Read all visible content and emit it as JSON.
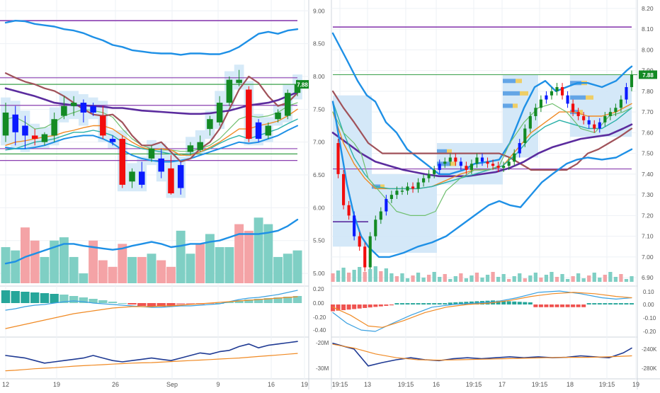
{
  "colors": {
    "up": "#138a24",
    "down": "#f20d0d",
    "strong_up": "#0a1aff",
    "band": "#1e90e6",
    "mid": "#5b2c9e",
    "line_brown": "#a0525a",
    "line_orange": "#f08a24",
    "line_teal": "#2ab0a8",
    "line_green": "#6fbf6f",
    "level_purple": "#8a3fb0",
    "level_green": "#3aa04a",
    "zone": "#cfe6f7",
    "vol_up": "#7fcfc4",
    "vol_down": "#f4a3a6",
    "macd_pos": "#26a69a",
    "macd_neg": "#ef5350",
    "macd_line": "#3aa0e0",
    "signal_line": "#f08a24",
    "obv_line": "#1f3a93",
    "obv_avg": "#f08a24",
    "grid": "#eef1f5",
    "axis_text": "#555555",
    "price_tag": "#138a24"
  },
  "chart_data": [
    {
      "type": "candlestick",
      "panel": "left",
      "x_tick_labels": [
        "12",
        "19",
        "26",
        "Sep",
        "9",
        "16",
        "19"
      ],
      "y_tick_labels": [
        "9.00",
        "8.50",
        "8.00",
        "7.50",
        "7.00",
        "6.50",
        "6.00",
        "5.50",
        "5.00"
      ],
      "ylim": [
        4.85,
        9.1
      ],
      "last_price_tag": "7.88",
      "candles": [
        {
          "o": 7.1,
          "h": 7.6,
          "l": 7.0,
          "c": 7.45,
          "t": "up"
        },
        {
          "o": 7.15,
          "h": 7.55,
          "l": 6.95,
          "c": 7.42,
          "t": "strong_up"
        },
        {
          "o": 7.25,
          "h": 7.4,
          "l": 6.9,
          "c": 7.1,
          "t": "strong_up"
        },
        {
          "o": 7.1,
          "h": 7.2,
          "l": 6.95,
          "c": 7.05,
          "t": "down"
        },
        {
          "o": 7.0,
          "h": 7.15,
          "l": 6.95,
          "c": 7.12,
          "t": "up"
        },
        {
          "o": 7.1,
          "h": 7.45,
          "l": 7.0,
          "c": 7.35,
          "t": "up"
        },
        {
          "o": 7.4,
          "h": 7.7,
          "l": 7.35,
          "c": 7.55,
          "t": "up"
        },
        {
          "o": 7.55,
          "h": 7.7,
          "l": 7.4,
          "c": 7.6,
          "t": "up"
        },
        {
          "o": 7.45,
          "h": 7.65,
          "l": 7.3,
          "c": 7.6,
          "t": "strong_up"
        },
        {
          "o": 7.55,
          "h": 7.6,
          "l": 7.4,
          "c": 7.45,
          "t": "strong_up"
        },
        {
          "o": 7.4,
          "h": 7.55,
          "l": 7.05,
          "c": 7.1,
          "t": "down"
        },
        {
          "o": 7.05,
          "h": 7.1,
          "l": 6.95,
          "c": 7.0,
          "t": "strong_up"
        },
        {
          "o": 7.05,
          "h": 7.1,
          "l": 6.3,
          "c": 6.35,
          "t": "down"
        },
        {
          "o": 6.4,
          "h": 6.6,
          "l": 6.3,
          "c": 6.55,
          "t": "up"
        },
        {
          "o": 6.55,
          "h": 6.7,
          "l": 6.3,
          "c": 6.35,
          "t": "strong_up"
        },
        {
          "o": 6.75,
          "h": 6.95,
          "l": 6.7,
          "c": 6.9,
          "t": "up"
        },
        {
          "o": 6.75,
          "h": 6.9,
          "l": 6.45,
          "c": 6.55,
          "t": "strong_up"
        },
        {
          "o": 6.6,
          "h": 6.8,
          "l": 6.2,
          "c": 6.22,
          "t": "down"
        },
        {
          "o": 6.3,
          "h": 6.7,
          "l": 6.2,
          "c": 6.65,
          "t": "strong_up"
        },
        {
          "o": 6.85,
          "h": 7.0,
          "l": 6.8,
          "c": 6.95,
          "t": "up"
        },
        {
          "o": 7.0,
          "h": 7.1,
          "l": 6.85,
          "c": 6.88,
          "t": "up"
        },
        {
          "o": 7.2,
          "h": 7.4,
          "l": 7.1,
          "c": 7.35,
          "t": "up"
        },
        {
          "o": 7.3,
          "h": 7.7,
          "l": 7.25,
          "c": 7.6,
          "t": "up"
        },
        {
          "o": 7.6,
          "h": 8.0,
          "l": 7.55,
          "c": 7.95,
          "t": "up"
        },
        {
          "o": 7.95,
          "h": 8.1,
          "l": 7.85,
          "c": 7.9,
          "t": "up"
        },
        {
          "o": 7.8,
          "h": 7.85,
          "l": 7.0,
          "c": 7.05,
          "t": "down"
        },
        {
          "o": 7.05,
          "h": 7.35,
          "l": 7.0,
          "c": 7.3,
          "t": "strong_up"
        },
        {
          "o": 7.1,
          "h": 7.3,
          "l": 7.05,
          "c": 7.25,
          "t": "up"
        },
        {
          "o": 7.35,
          "h": 7.5,
          "l": 7.3,
          "c": 7.45,
          "t": "up"
        },
        {
          "o": 7.4,
          "h": 7.8,
          "l": 7.35,
          "c": 7.75,
          "t": "up"
        },
        {
          "o": 7.75,
          "h": 7.95,
          "l": 7.7,
          "c": 7.88,
          "t": "up"
        }
      ],
      "volume": [
        5.4,
        5.35,
        5.7,
        5.5,
        5.25,
        5.5,
        5.55,
        5.25,
        5.0,
        5.5,
        5.2,
        5.1,
        5.45,
        5.25,
        5.25,
        5.3,
        5.2,
        5.1,
        5.65,
        5.3,
        5.45,
        5.6,
        5.4,
        5.4,
        5.75,
        5.65,
        5.85,
        5.75,
        5.25,
        5.3,
        5.35
      ],
      "macd_y_tick_labels": [
        "0.20",
        "0.00",
        "-0.20",
        "-0.40"
      ],
      "obv_y_tick_labels": [
        "-20M",
        "-30M"
      ]
    },
    {
      "type": "candlestick",
      "panel": "right",
      "x_tick_labels": [
        "19:15",
        "13",
        "19:15",
        "16",
        "19:15",
        "17",
        "19:15",
        "18",
        "19:15",
        "19"
      ],
      "y_tick_labels": [
        "8.20",
        "8.10",
        "8.00",
        "7.90",
        "7.80",
        "7.70",
        "7.60",
        "7.50",
        "7.40",
        "7.30",
        "7.20",
        "7.10",
        "7.00",
        "6.90"
      ],
      "ylim": [
        6.88,
        8.22
      ],
      "last_price_tag": "7.88",
      "macd_y_tick_labels": [
        "0.10",
        "0.00",
        "-0.10",
        "-0.20"
      ],
      "obv_y_tick_labels": [
        "-240K",
        "-280K"
      ]
    }
  ]
}
